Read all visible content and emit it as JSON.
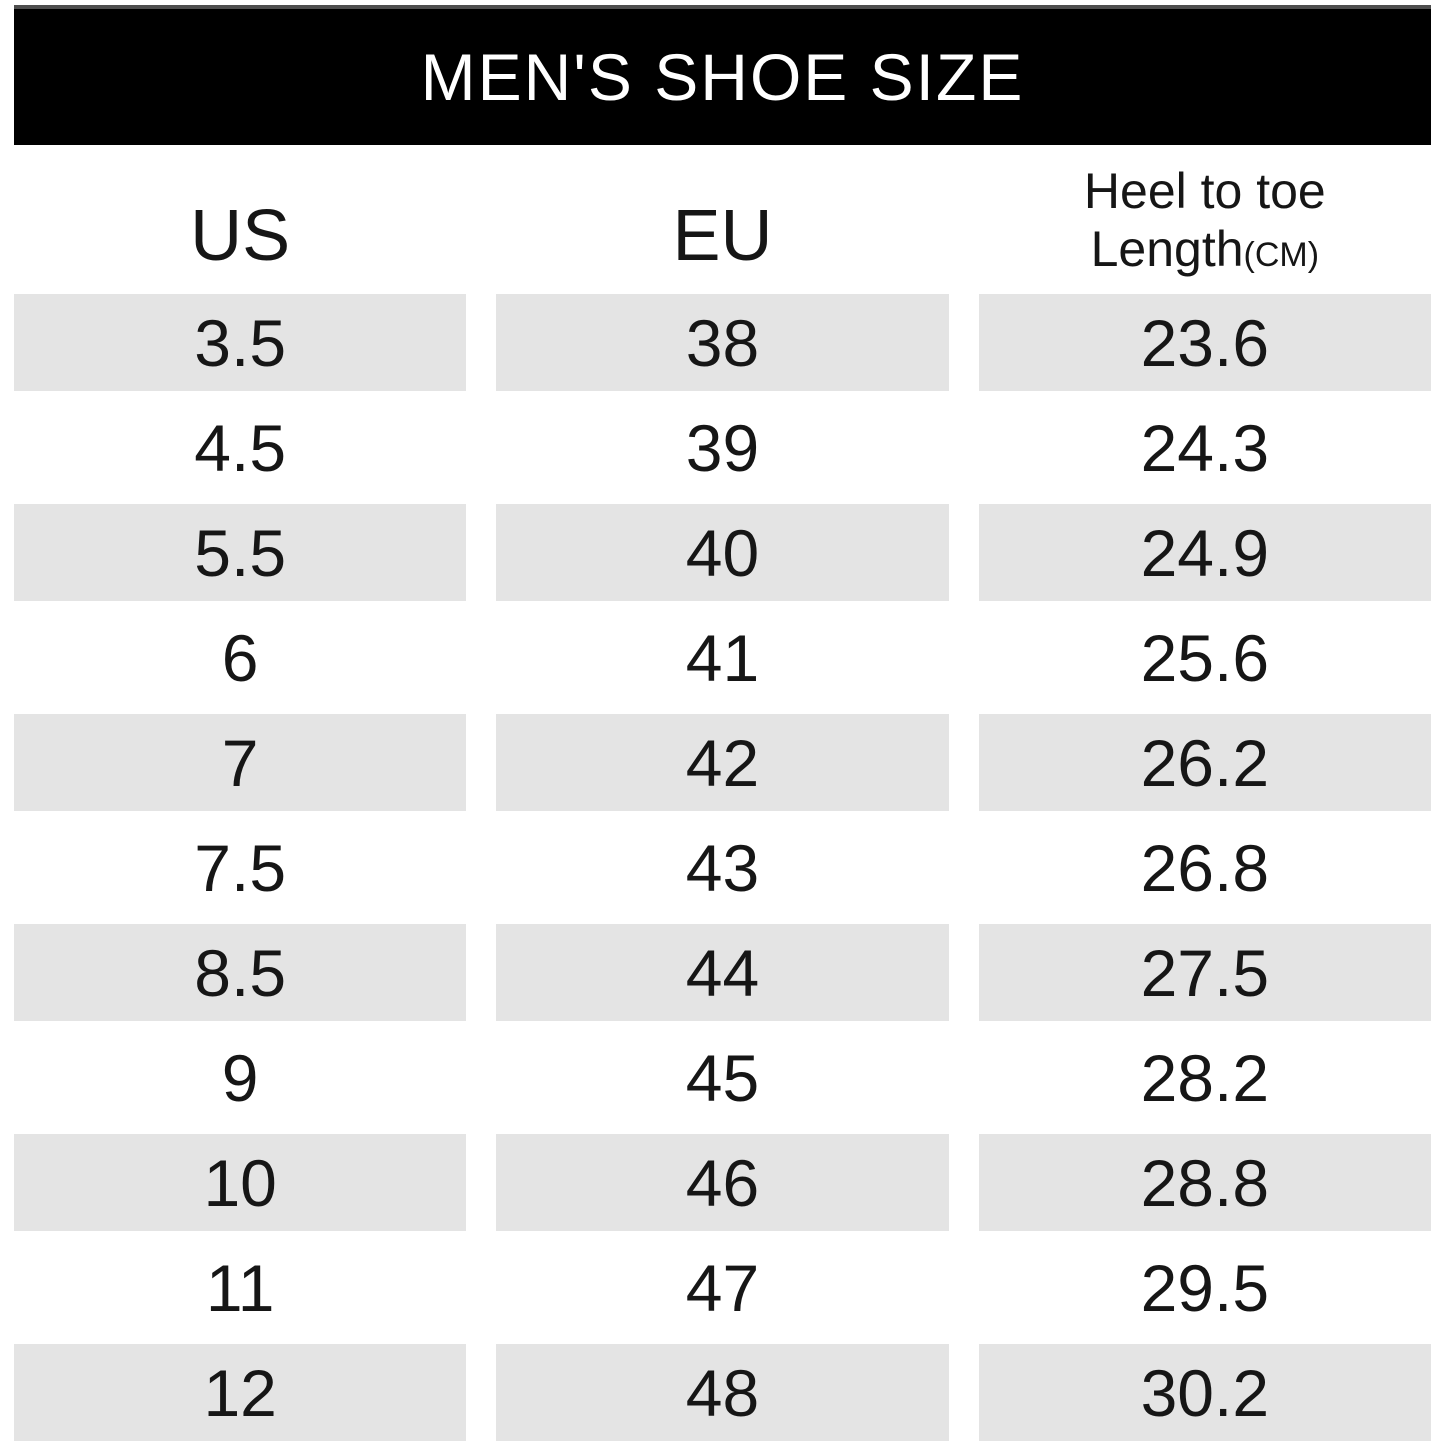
{
  "chart_data": {
    "type": "table",
    "title": "MEN'S SHOE SIZE",
    "columns": [
      "US",
      "EU",
      "Heel to toe Length(CM)"
    ],
    "rows": [
      [
        "3.5",
        "38",
        "23.6"
      ],
      [
        "4.5",
        "39",
        "24.3"
      ],
      [
        "5.5",
        "40",
        "24.9"
      ],
      [
        "6",
        "41",
        "25.6"
      ],
      [
        "7",
        "42",
        "26.2"
      ],
      [
        "7.5",
        "43",
        "26.8"
      ],
      [
        "8.5",
        "44",
        "27.5"
      ],
      [
        "9",
        "45",
        "28.2"
      ],
      [
        "10",
        "46",
        "28.8"
      ],
      [
        "11",
        "47",
        "29.5"
      ],
      [
        "12",
        "48",
        "30.2"
      ]
    ],
    "layout": {
      "alternating_row_shading": "rows 1,3,5,7,9,11 shaded",
      "grid": "off",
      "title_position": "top black bar"
    }
  },
  "header_detail": {
    "length_line1": "Heel to toe",
    "length_line2": "Length",
    "length_unit": "(CM)"
  },
  "colors": {
    "title_bar_bg": "#000000",
    "title_text": "#ffffff",
    "alt_row_bg": "#e4e4e4",
    "body_text": "#161616",
    "page_bg": "#ffffff"
  }
}
